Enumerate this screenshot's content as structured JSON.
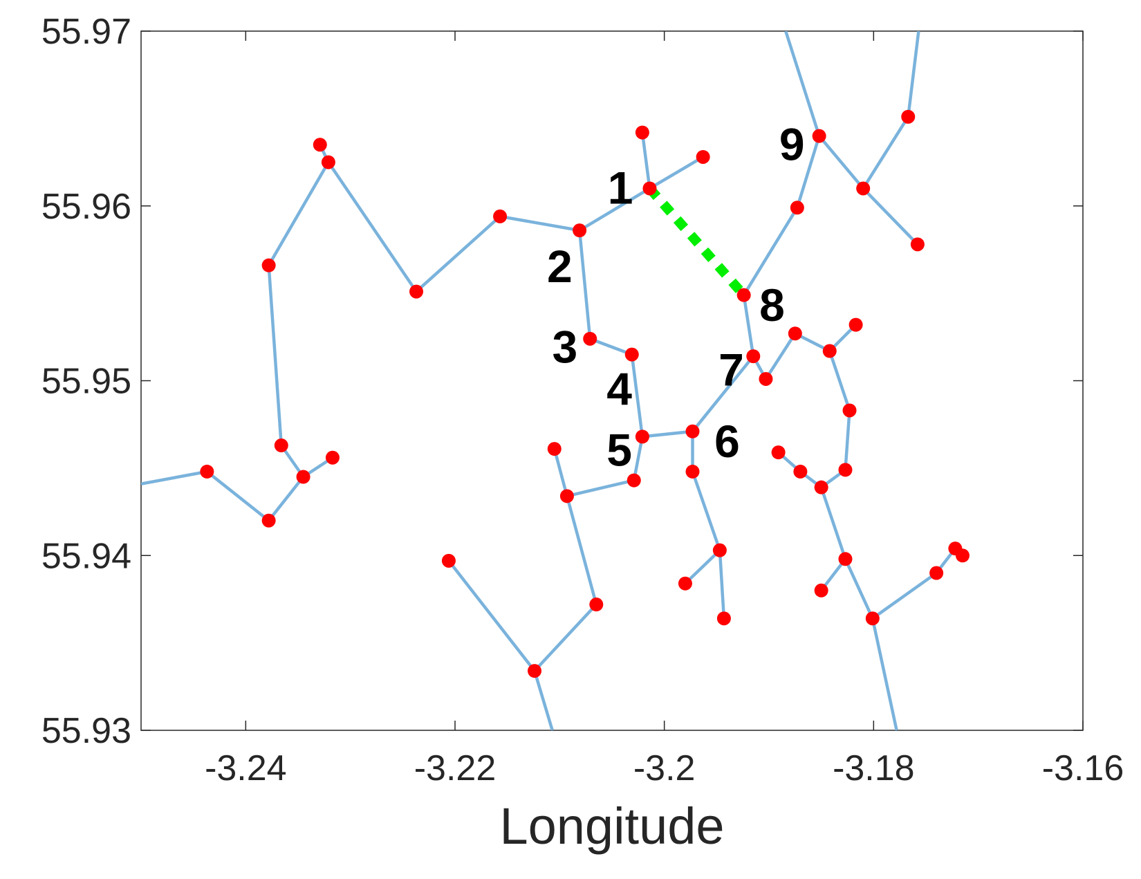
{
  "chart_data": {
    "type": "network",
    "x_label": "Longitude",
    "xlim": [
      -3.25,
      -3.16
    ],
    "ylim": [
      55.93,
      55.97
    ],
    "xticks": [
      -3.24,
      -3.22,
      -3.2,
      -3.18,
      -3.16
    ],
    "yticks": [
      55.93,
      55.94,
      55.95,
      55.96,
      55.97
    ],
    "edge_color": "#7ab3dc",
    "node_color": "#ff0000",
    "nodes": {
      "x": [
        -3.2014,
        -3.2081,
        -3.2071,
        -3.2031,
        -3.2021,
        -3.1973,
        -3.1915,
        -3.1924,
        -3.1963,
        -3.2021,
        -3.1903,
        -3.1875,
        -3.1842,
        -3.1817,
        -3.1823,
        -3.1827,
        -3.185,
        -3.187,
        -3.1891,
        -3.1827,
        -3.185,
        -3.1801,
        -3.174,
        -3.1722,
        -3.1715,
        -3.1873,
        -3.1852,
        -3.181,
        -3.1767,
        -3.1758,
        -3.1973,
        -3.1947,
        -3.198,
        -3.1943,
        -3.2029,
        -3.2093,
        -3.2105,
        -3.2065,
        -3.2124,
        -3.2206,
        -3.2157,
        -3.2237,
        -3.2321,
        -3.2329,
        -3.2378,
        -3.2366,
        -3.2345,
        -3.2317,
        -3.2378,
        -3.2437
      ],
      "y": [
        55.961,
        55.9586,
        55.9524,
        55.9515,
        55.9468,
        55.9471,
        55.9514,
        55.9549,
        55.9628,
        55.9642,
        55.9501,
        55.9527,
        55.9517,
        55.9532,
        55.9483,
        55.9449,
        55.9439,
        55.9448,
        55.9459,
        55.9398,
        55.938,
        55.9364,
        55.939,
        55.9404,
        55.94,
        55.9599,
        55.964,
        55.961,
        55.9651,
        55.9578,
        55.9448,
        55.9403,
        55.9384,
        55.9364,
        55.9443,
        55.9434,
        55.9461,
        55.9372,
        55.9334,
        55.9397,
        55.9594,
        55.9551,
        55.9625,
        55.9635,
        55.9566,
        55.9463,
        55.9445,
        55.9456,
        55.942,
        55.9448
      ]
    },
    "edges": [
      {
        "x": [
          -3.25,
          -3.2437,
          -3.2378,
          -3.2345,
          -3.2317
        ],
        "y": [
          55.9441,
          55.9448,
          55.942,
          55.9445,
          55.9456
        ]
      },
      {
        "x": [
          -3.2345,
          -3.2366,
          -3.2378,
          -3.2321,
          -3.2237,
          -3.2157,
          -3.2081,
          -3.2014,
          -3.1963
        ],
        "y": [
          55.9445,
          55.9463,
          55.9566,
          55.9625,
          55.9551,
          55.9594,
          55.9586,
          55.961,
          55.9628
        ]
      },
      {
        "x": [
          -3.2329,
          -3.2321
        ],
        "y": [
          55.9635,
          55.9625
        ]
      },
      {
        "x": [
          -3.2014,
          -3.2021
        ],
        "y": [
          55.961,
          55.9642
        ]
      },
      {
        "x": [
          -3.2081,
          -3.2071,
          -3.2031,
          -3.2021,
          -3.2029,
          -3.2093,
          -3.2105
        ],
        "y": [
          55.9586,
          55.9524,
          55.9515,
          55.9468,
          55.9443,
          55.9434,
          55.9461
        ]
      },
      {
        "x": [
          -3.2093,
          -3.2065,
          -3.2124,
          -3.2206
        ],
        "y": [
          55.9434,
          55.9372,
          55.9334,
          55.9397
        ]
      },
      {
        "x": [
          -3.2124,
          -3.2107
        ],
        "y": [
          55.9334,
          55.93
        ]
      },
      {
        "x": [
          -3.2021,
          -3.1973,
          -3.1915,
          -3.1924,
          -3.1873,
          -3.1852,
          -3.1884
        ],
        "y": [
          55.9468,
          55.9471,
          55.9514,
          55.9549,
          55.9599,
          55.964,
          55.97
        ]
      },
      {
        "x": [
          -3.1852,
          -3.181,
          -3.1767,
          -3.1757
        ],
        "y": [
          55.964,
          55.961,
          55.9651,
          55.97
        ]
      },
      {
        "x": [
          -3.181,
          -3.1758
        ],
        "y": [
          55.961,
          55.9578
        ]
      },
      {
        "x": [
          -3.1915,
          -3.1903,
          -3.1875,
          -3.1842,
          -3.1817
        ],
        "y": [
          55.9514,
          55.9501,
          55.9527,
          55.9517,
          55.9532
        ]
      },
      {
        "x": [
          -3.1842,
          -3.1823,
          -3.1827,
          -3.185,
          -3.187,
          -3.1891
        ],
        "y": [
          55.9517,
          55.9483,
          55.9449,
          55.9439,
          55.9448,
          55.9459
        ]
      },
      {
        "x": [
          -3.185,
          -3.1827,
          -3.185
        ],
        "y": [
          55.9439,
          55.9398,
          55.938
        ]
      },
      {
        "x": [
          -3.1827,
          -3.1801,
          -3.174,
          -3.1722,
          -3.1715
        ],
        "y": [
          55.9398,
          55.9364,
          55.939,
          55.9404,
          55.94
        ]
      },
      {
        "x": [
          -3.1801,
          -3.1778
        ],
        "y": [
          55.9364,
          55.93
        ]
      },
      {
        "x": [
          -3.1973,
          -3.1973,
          -3.1947,
          -3.198
        ],
        "y": [
          55.9471,
          55.9448,
          55.9403,
          55.9384
        ]
      },
      {
        "x": [
          -3.1947,
          -3.1943
        ],
        "y": [
          55.9403,
          55.9364
        ]
      }
    ],
    "highlight": {
      "color": "#00ee00",
      "x": [
        -3.2014,
        -3.1924
      ],
      "y": [
        55.961,
        55.9549
      ]
    },
    "annotations": [
      {
        "text": "1",
        "x": -3.2042,
        "y": 55.961
      },
      {
        "text": "2",
        "x": -3.21,
        "y": 55.9565
      },
      {
        "text": "3",
        "x": -3.2095,
        "y": 55.9519
      },
      {
        "text": "4",
        "x": -3.2043,
        "y": 55.9495
      },
      {
        "text": "5",
        "x": -3.2043,
        "y": 55.946
      },
      {
        "text": "6",
        "x": -3.194,
        "y": 55.9465
      },
      {
        "text": "7",
        "x": -3.1936,
        "y": 55.9506
      },
      {
        "text": "8",
        "x": -3.1897,
        "y": 55.9543
      },
      {
        "text": "9",
        "x": -3.1878,
        "y": 55.9635
      }
    ]
  }
}
